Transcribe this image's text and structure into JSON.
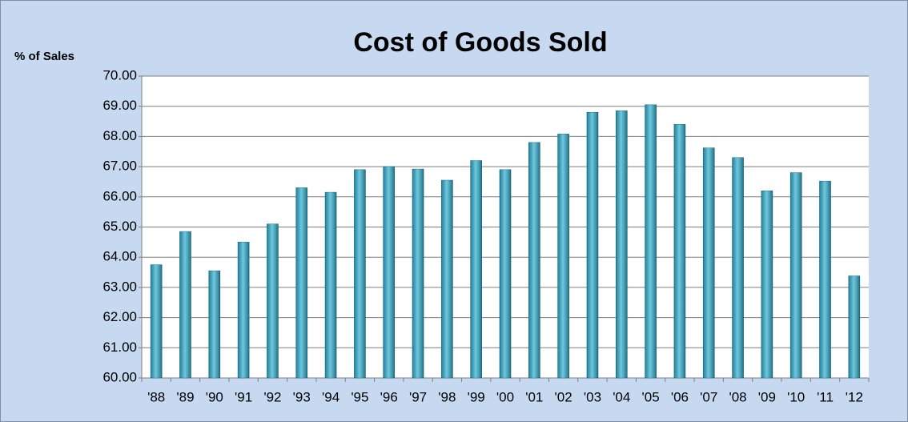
{
  "chart_data": {
    "type": "bar",
    "title": "Cost of Goods Sold",
    "y_label": "% of Sales",
    "categories": [
      "'88",
      "'89",
      "'90",
      "'91",
      "'92",
      "'93",
      "'94",
      "'95",
      "'96",
      "'97",
      "'98",
      "'99",
      "'00",
      "'01",
      "'02",
      "'03",
      "'04",
      "'05",
      "'06",
      "'07",
      "'08",
      "'09",
      "'10",
      "'11",
      "'12"
    ],
    "values": [
      63.75,
      64.85,
      63.55,
      64.5,
      65.1,
      66.3,
      66.15,
      66.9,
      67.0,
      66.92,
      66.55,
      67.2,
      66.9,
      67.8,
      68.08,
      68.8,
      68.85,
      69.05,
      68.4,
      67.62,
      67.3,
      66.2,
      66.8,
      66.52,
      63.38
    ],
    "color": "#31b0d0",
    "ylim": [
      60,
      70
    ],
    "yticks": [
      {
        "value": 60,
        "label": "60.00"
      },
      {
        "value": 61,
        "label": "61.00"
      },
      {
        "value": 62,
        "label": "62.00"
      },
      {
        "value": 63,
        "label": "63.00"
      },
      {
        "value": 64,
        "label": "64.00"
      },
      {
        "value": 65,
        "label": "65.00"
      },
      {
        "value": 66,
        "label": "66.00"
      },
      {
        "value": 67,
        "label": "67.00"
      },
      {
        "value": 68,
        "label": "68.00"
      },
      {
        "value": 69,
        "label": "69.00"
      },
      {
        "value": 70,
        "label": "70.00"
      }
    ],
    "grid": true
  }
}
